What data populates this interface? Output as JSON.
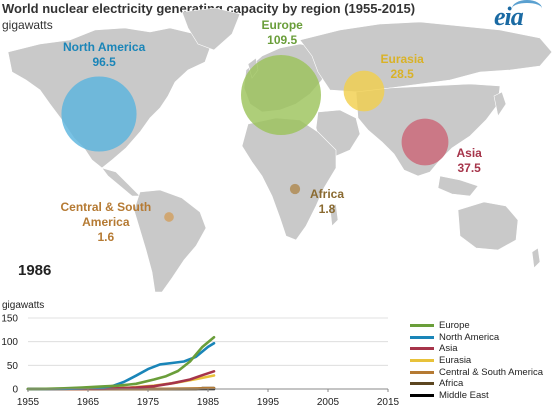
{
  "header": {
    "title": "World nuclear electricity generating capacity by region (1955-2015)",
    "units": "gigawatts",
    "logo_text": "eia"
  },
  "year_label": "1986",
  "colors": {
    "land": "#c9c9c9",
    "ocean": "#ffffff",
    "Europe": "#6a9e3a",
    "North America": "#1a85b8",
    "Asia": "#a6344a",
    "Eurasia": "#e8c23a",
    "Central & South America": "#b57a33",
    "Africa": "#5c4620",
    "Middle East": "#000000"
  },
  "chart_data": [
    {
      "type": "bubble_map",
      "title": "World nuclear electricity generating capacity by region (1955-2015)",
      "units": "gigawatts",
      "year": "1986",
      "regions": [
        {
          "name": "North America",
          "label": [
            "North America"
          ],
          "value": 96.5,
          "value_label": "96.5",
          "color": "#1a85b8",
          "bubble_color": "#5bb4de"
        },
        {
          "name": "Europe",
          "label": [
            "Europe"
          ],
          "value": 109.5,
          "value_label": "109.5",
          "color": "#6a9e3a",
          "bubble_color": "#9cc35c"
        },
        {
          "name": "Eurasia",
          "label": [
            "Eurasia"
          ],
          "value": 28.5,
          "value_label": "28.5",
          "color": "#d9b227",
          "bubble_color": "#f2d04e"
        },
        {
          "name": "Asia",
          "label": [
            "Asia"
          ],
          "value": 37.5,
          "value_label": "37.5",
          "color": "#a6344a",
          "bubble_color": "#cc6677"
        },
        {
          "name": "Africa",
          "label": [
            "Africa"
          ],
          "value": 1.8,
          "value_label": "1.8",
          "color": "#8a6a30",
          "bubble_color": "#b08a50"
        },
        {
          "name": "Central & South America",
          "label": [
            "Central & South",
            "America"
          ],
          "value": 1.6,
          "value_label": "1.6",
          "color": "#b57a33",
          "bubble_color": "#d2a060"
        }
      ]
    },
    {
      "type": "line",
      "ylabel": "gigawatts",
      "xlim": [
        1955,
        2015
      ],
      "ylim": [
        0,
        150
      ],
      "x_ticks": [
        1955,
        1965,
        1975,
        1985,
        1995,
        2005,
        2015
      ],
      "y_ticks": [
        0,
        50,
        100,
        150
      ],
      "series": [
        {
          "name": "Europe",
          "color": "#6a9e3a",
          "x": [
            1955,
            1958,
            1961,
            1964,
            1967,
            1970,
            1973,
            1976,
            1978,
            1980,
            1982,
            1984,
            1986
          ],
          "y": [
            0,
            0.5,
            1.5,
            3,
            5,
            7,
            11,
            20,
            27,
            38,
            58,
            88,
            109.5
          ]
        },
        {
          "name": "North America",
          "color": "#1a85b8",
          "x": [
            1955,
            1958,
            1961,
            1964,
            1967,
            1969,
            1971,
            1973,
            1975,
            1977,
            1979,
            1981,
            1983,
            1985,
            1986
          ],
          "y": [
            0,
            0,
            0.5,
            1,
            3,
            6,
            15,
            28,
            42,
            52,
            55,
            58,
            68,
            89,
            96.5
          ]
        },
        {
          "name": "Asia",
          "color": "#a6344a",
          "x": [
            1955,
            1964,
            1967,
            1970,
            1973,
            1976,
            1979,
            1982,
            1984,
            1986
          ],
          "y": [
            0,
            0,
            0.5,
            1.5,
            3,
            6,
            12,
            20,
            29,
            37.5
          ]
        },
        {
          "name": "Eurasia",
          "color": "#e8c23a",
          "x": [
            1955,
            1962,
            1965,
            1968,
            1972,
            1976,
            1980,
            1983,
            1986
          ],
          "y": [
            0,
            0,
            0.5,
            1,
            3,
            7,
            14,
            21,
            28.5
          ]
        },
        {
          "name": "Central & South America",
          "color": "#b57a33",
          "x": [
            1955,
            1973,
            1978,
            1983,
            1986
          ],
          "y": [
            0,
            0,
            0.5,
            1.2,
            1.6
          ]
        },
        {
          "name": "Africa",
          "color": "#5c4620",
          "x": [
            1955,
            1983,
            1984,
            1986
          ],
          "y": [
            0,
            0,
            1.8,
            1.8
          ]
        },
        {
          "name": "Middle East",
          "color": "#000000",
          "x": [
            1955,
            1986
          ],
          "y": [
            0,
            0
          ]
        }
      ]
    }
  ]
}
